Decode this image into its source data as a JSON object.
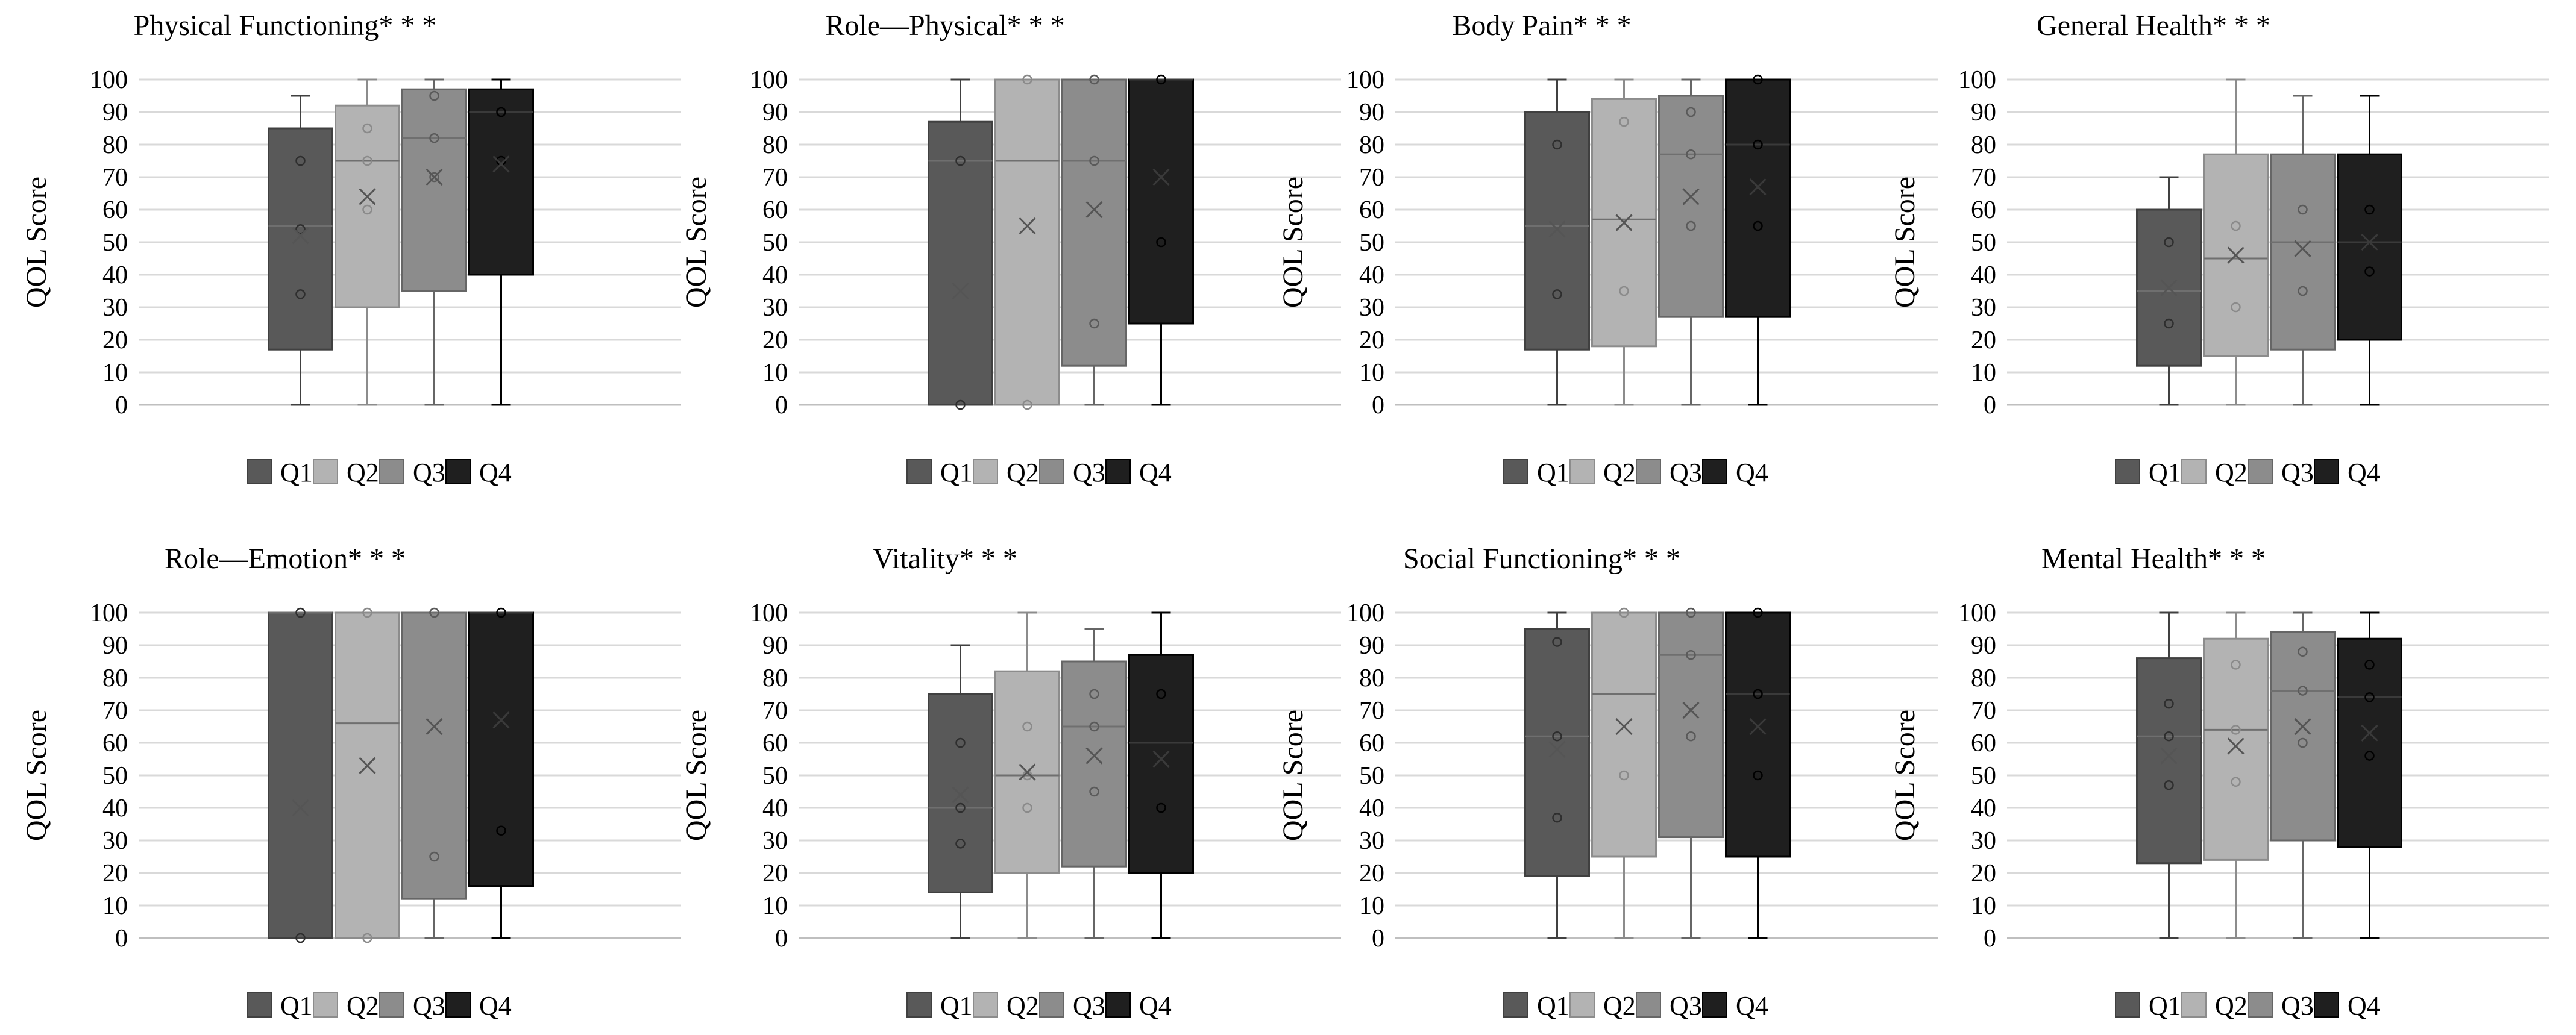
{
  "figure": {
    "y_axis_label": "QOL Score",
    "legend": [
      "Q1",
      "Q2",
      "Q3",
      "Q4"
    ],
    "colors": {
      "Q1": "#595959",
      "Q2": "#b3b3b3",
      "Q3": "#8c8c8c",
      "Q4": "#1f1f1f"
    }
  },
  "chart_data": [
    {
      "type": "box",
      "title": "Physical Functioning* * *",
      "ylabel": "QOL Score",
      "ylim": [
        0,
        100
      ],
      "yticks": [
        0,
        10,
        20,
        30,
        40,
        50,
        60,
        70,
        80,
        90,
        100
      ],
      "series": [
        {
          "name": "Q1",
          "min": 0,
          "q1": 17,
          "median": 55,
          "q3": 85,
          "max": 95,
          "mean": 52,
          "points": [
            75,
            54,
            34
          ]
        },
        {
          "name": "Q2",
          "min": 0,
          "q1": 30,
          "median": 75,
          "q3": 92,
          "max": 100,
          "mean": 64,
          "points": [
            85,
            75,
            60
          ]
        },
        {
          "name": "Q3",
          "min": 0,
          "q1": 35,
          "median": 82,
          "q3": 97,
          "max": 100,
          "mean": 70,
          "points": [
            95,
            82,
            70
          ]
        },
        {
          "name": "Q4",
          "min": 0,
          "q1": 40,
          "median": 90,
          "q3": 97,
          "max": 100,
          "mean": 74,
          "points": [
            90,
            75
          ]
        }
      ]
    },
    {
      "type": "box",
      "title": "Role—Physical* * *",
      "ylabel": "QOL Score",
      "ylim": [
        0,
        100
      ],
      "yticks": [
        0,
        10,
        20,
        30,
        40,
        50,
        60,
        70,
        80,
        90,
        100
      ],
      "series": [
        {
          "name": "Q1",
          "min": 0,
          "q1": 0,
          "median": 75,
          "q3": 87,
          "max": 100,
          "mean": 35,
          "points": [
            75,
            0
          ]
        },
        {
          "name": "Q2",
          "min": 0,
          "q1": 0,
          "median": 75,
          "q3": 100,
          "max": 100,
          "mean": 55,
          "points": [
            100,
            0
          ]
        },
        {
          "name": "Q3",
          "min": 0,
          "q1": 12,
          "median": 75,
          "q3": 100,
          "max": 100,
          "mean": 60,
          "points": [
            100,
            75,
            25
          ]
        },
        {
          "name": "Q4",
          "min": 0,
          "q1": 25,
          "median": 100,
          "q3": 100,
          "max": 100,
          "mean": 70,
          "points": [
            100,
            50
          ]
        }
      ]
    },
    {
      "type": "box",
      "title": "Body Pain* * *",
      "ylabel": "QOL Score",
      "ylim": [
        0,
        100
      ],
      "yticks": [
        0,
        10,
        20,
        30,
        40,
        50,
        60,
        70,
        80,
        90,
        100
      ],
      "series": [
        {
          "name": "Q1",
          "min": 0,
          "q1": 17,
          "median": 55,
          "q3": 90,
          "max": 100,
          "mean": 54,
          "points": [
            80,
            34
          ]
        },
        {
          "name": "Q2",
          "min": 0,
          "q1": 18,
          "median": 57,
          "q3": 94,
          "max": 100,
          "mean": 56,
          "points": [
            87,
            35
          ]
        },
        {
          "name": "Q3",
          "min": 0,
          "q1": 27,
          "median": 77,
          "q3": 95,
          "max": 100,
          "mean": 64,
          "points": [
            90,
            77,
            55
          ]
        },
        {
          "name": "Q4",
          "min": 0,
          "q1": 27,
          "median": 80,
          "q3": 100,
          "max": 100,
          "mean": 67,
          "points": [
            100,
            80,
            55
          ]
        }
      ]
    },
    {
      "type": "box",
      "title": "General Health* * *",
      "ylabel": "QOL Score",
      "ylim": [
        0,
        100
      ],
      "yticks": [
        0,
        10,
        20,
        30,
        40,
        50,
        60,
        70,
        80,
        90,
        100
      ],
      "series": [
        {
          "name": "Q1",
          "min": 0,
          "q1": 12,
          "median": 35,
          "q3": 60,
          "max": 70,
          "mean": 36,
          "points": [
            50,
            25
          ]
        },
        {
          "name": "Q2",
          "min": 0,
          "q1": 15,
          "median": 45,
          "q3": 77,
          "max": 100,
          "mean": 46,
          "points": [
            55,
            30
          ]
        },
        {
          "name": "Q3",
          "min": 0,
          "q1": 17,
          "median": 50,
          "q3": 77,
          "max": 95,
          "mean": 48,
          "points": [
            60,
            35
          ]
        },
        {
          "name": "Q4",
          "min": 0,
          "q1": 20,
          "median": 50,
          "q3": 77,
          "max": 95,
          "mean": 50,
          "points": [
            60,
            41
          ]
        }
      ]
    },
    {
      "type": "box",
      "title": "Role—Emotion* * *",
      "ylabel": "QOL Score",
      "ylim": [
        0,
        100
      ],
      "yticks": [
        0,
        10,
        20,
        30,
        40,
        50,
        60,
        70,
        80,
        90,
        100
      ],
      "series": [
        {
          "name": "Q1",
          "min": 0,
          "q1": 0,
          "median": 100,
          "q3": 100,
          "max": 100,
          "mean": 40,
          "points": [
            100,
            0
          ]
        },
        {
          "name": "Q2",
          "min": 0,
          "q1": 0,
          "median": 66,
          "q3": 100,
          "max": 100,
          "mean": 53,
          "points": [
            100,
            0
          ]
        },
        {
          "name": "Q3",
          "min": 0,
          "q1": 12,
          "median": 100,
          "q3": 100,
          "max": 100,
          "mean": 65,
          "points": [
            100,
            25
          ]
        },
        {
          "name": "Q4",
          "min": 0,
          "q1": 16,
          "median": 100,
          "q3": 100,
          "max": 100,
          "mean": 67,
          "points": [
            100,
            33
          ]
        }
      ]
    },
    {
      "type": "box",
      "title": "Vitality* * *",
      "ylabel": "QOL Score",
      "ylim": [
        0,
        100
      ],
      "yticks": [
        0,
        10,
        20,
        30,
        40,
        50,
        60,
        70,
        80,
        90,
        100
      ],
      "series": [
        {
          "name": "Q1",
          "min": 0,
          "q1": 14,
          "median": 40,
          "q3": 75,
          "max": 90,
          "mean": 44,
          "points": [
            60,
            40,
            29
          ]
        },
        {
          "name": "Q2",
          "min": 0,
          "q1": 20,
          "median": 50,
          "q3": 82,
          "max": 100,
          "mean": 51,
          "points": [
            65,
            50,
            40
          ]
        },
        {
          "name": "Q3",
          "min": 0,
          "q1": 22,
          "median": 65,
          "q3": 85,
          "max": 95,
          "mean": 56,
          "points": [
            75,
            65,
            45
          ]
        },
        {
          "name": "Q4",
          "min": 0,
          "q1": 20,
          "median": 60,
          "q3": 87,
          "max": 100,
          "mean": 55,
          "points": [
            75,
            40
          ]
        }
      ]
    },
    {
      "type": "box",
      "title": "Social Functioning* * *",
      "ylabel": "QOL Score",
      "ylim": [
        0,
        100
      ],
      "yticks": [
        0,
        10,
        20,
        30,
        40,
        50,
        60,
        70,
        80,
        90,
        100
      ],
      "series": [
        {
          "name": "Q1",
          "min": 0,
          "q1": 19,
          "median": 62,
          "q3": 95,
          "max": 100,
          "mean": 58,
          "points": [
            91,
            62,
            37
          ]
        },
        {
          "name": "Q2",
          "min": 0,
          "q1": 25,
          "median": 75,
          "q3": 100,
          "max": 100,
          "mean": 65,
          "points": [
            100,
            50
          ]
        },
        {
          "name": "Q3",
          "min": 0,
          "q1": 31,
          "median": 87,
          "q3": 100,
          "max": 100,
          "mean": 70,
          "points": [
            100,
            87,
            62
          ]
        },
        {
          "name": "Q4",
          "min": 0,
          "q1": 25,
          "median": 75,
          "q3": 100,
          "max": 100,
          "mean": 65,
          "points": [
            100,
            75,
            50
          ]
        }
      ]
    },
    {
      "type": "box",
      "title": "Mental Health* * *",
      "ylabel": "QOL Score",
      "ylim": [
        0,
        100
      ],
      "yticks": [
        0,
        10,
        20,
        30,
        40,
        50,
        60,
        70,
        80,
        90,
        100
      ],
      "series": [
        {
          "name": "Q1",
          "min": 0,
          "q1": 23,
          "median": 62,
          "q3": 86,
          "max": 100,
          "mean": 56,
          "points": [
            72,
            62,
            47
          ]
        },
        {
          "name": "Q2",
          "min": 0,
          "q1": 24,
          "median": 64,
          "q3": 92,
          "max": 100,
          "mean": 59,
          "points": [
            84,
            64,
            48
          ]
        },
        {
          "name": "Q3",
          "min": 0,
          "q1": 30,
          "median": 76,
          "q3": 94,
          "max": 100,
          "mean": 65,
          "points": [
            88,
            76,
            60
          ]
        },
        {
          "name": "Q4",
          "min": 0,
          "q1": 28,
          "median": 74,
          "q3": 92,
          "max": 100,
          "mean": 63,
          "points": [
            84,
            74,
            56
          ]
        }
      ]
    }
  ]
}
